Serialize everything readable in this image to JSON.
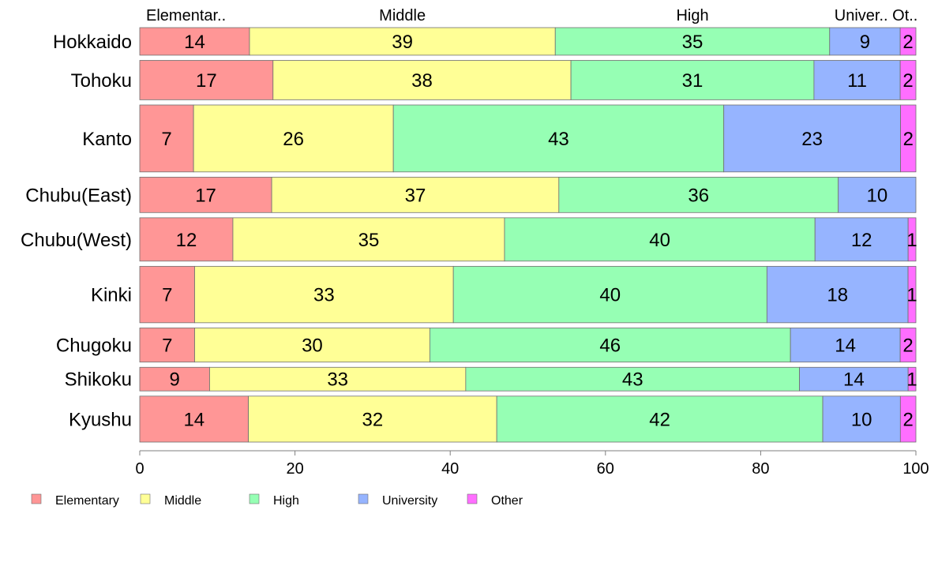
{
  "chart_data": {
    "type": "bar",
    "orientation": "horizontal",
    "stacked": "percent",
    "categories": [
      "Hokkaido",
      "Tohoku",
      "Kanto",
      "Chubu(East)",
      "Chubu(West)",
      "Kinki",
      "Chugoku",
      "Shikoku",
      "Kyushu"
    ],
    "series": [
      {
        "name": "Elementary",
        "color": "#FF9696",
        "values": [
          14,
          17,
          7,
          17,
          12,
          7,
          7,
          9,
          14
        ]
      },
      {
        "name": "Middle",
        "color": "#FFFF96",
        "values": [
          39,
          38,
          26,
          37,
          35,
          33,
          30,
          33,
          32
        ]
      },
      {
        "name": "High",
        "color": "#96FFB4",
        "values": [
          35,
          31,
          43,
          36,
          40,
          40,
          46,
          43,
          42
        ]
      },
      {
        "name": "University",
        "color": "#96B4FF",
        "values": [
          9,
          11,
          23,
          10,
          12,
          18,
          14,
          14,
          10
        ]
      },
      {
        "name": "Other",
        "color": "#FF6EFF",
        "values": [
          2,
          2,
          2,
          0,
          1,
          1,
          2,
          1,
          2
        ]
      }
    ],
    "segment_labels": [
      [
        "14",
        "39",
        "35",
        "9",
        "2"
      ],
      [
        "17",
        "38",
        "31",
        "11",
        "2"
      ],
      [
        "7",
        "26",
        "43",
        "23",
        "2"
      ],
      [
        "17",
        "37",
        "36",
        "10",
        ""
      ],
      [
        "12",
        "35",
        "40",
        "12",
        "1"
      ],
      [
        "7",
        "33",
        "40",
        "18",
        "1"
      ],
      [
        "7",
        "30",
        "46",
        "14",
        "2"
      ],
      [
        "9",
        "33",
        "43",
        "14",
        "1"
      ],
      [
        "14",
        "32",
        "42",
        "10",
        "2"
      ]
    ],
    "relative_heights": [
      21,
      30,
      51,
      27,
      33,
      43,
      26,
      18,
      35
    ],
    "top_labels": [
      "Elementar..",
      "Middle",
      "High",
      "Univer..",
      "Ot.."
    ],
    "xlim": [
      0,
      100
    ],
    "xticks": [
      "0",
      "20",
      "40",
      "60",
      "80",
      "100"
    ],
    "legend": [
      "Elementary",
      "Middle",
      "High",
      "University",
      "Other"
    ],
    "legend_position": "bottom-left",
    "grid": false
  }
}
